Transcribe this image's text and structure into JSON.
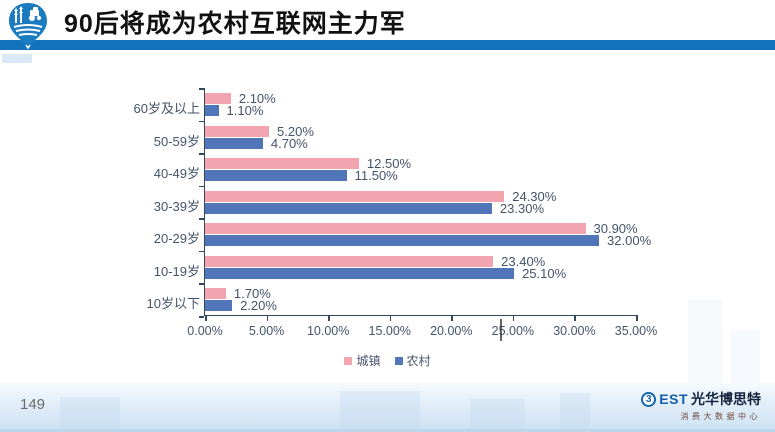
{
  "header": {
    "title": "90后将成为农村互联网主力军",
    "logo_icon": "farm-location-pin-icon"
  },
  "chart_data": {
    "type": "bar",
    "orientation": "horizontal",
    "title": "",
    "xlabel": "",
    "ylabel": "",
    "categories": [
      "60岁及以上",
      "50-59岁",
      "40-49岁",
      "30-39岁",
      "20-29岁",
      "10-19岁",
      "10岁以下"
    ],
    "series": [
      {
        "name": "城镇",
        "color": "#F2A5AE",
        "values": [
          2.1,
          5.2,
          12.5,
          24.3,
          30.9,
          23.4,
          1.7
        ],
        "labels": [
          "2.10%",
          "5.20%",
          "12.50%",
          "24.30%",
          "30.90%",
          "23.40%",
          "1.70%"
        ]
      },
      {
        "name": "农村",
        "color": "#5075B8",
        "values": [
          1.1,
          4.7,
          11.5,
          23.3,
          32.0,
          25.1,
          2.2
        ],
        "labels": [
          "1.10%",
          "4.70%",
          "11.50%",
          "23.30%",
          "32.00%",
          "25.10%",
          "2.20%"
        ]
      }
    ],
    "xlim": [
      0,
      35
    ],
    "xticks": [
      "0.00%",
      "5.00%",
      "10.00%",
      "15.00%",
      "20.00%",
      "25.00%",
      "30.00%",
      "35.00%"
    ],
    "grid": false,
    "legend_position": "bottom"
  },
  "footer": {
    "page_number": "149",
    "brand": {
      "b_glyph": "3",
      "name_en": "EST",
      "name_cn": "光华博思特",
      "subtitle": "消费大数据中心"
    }
  },
  "colors": {
    "header_bar": "#1273BC",
    "axis": "#33475F",
    "chart_text": "#44546A"
  }
}
